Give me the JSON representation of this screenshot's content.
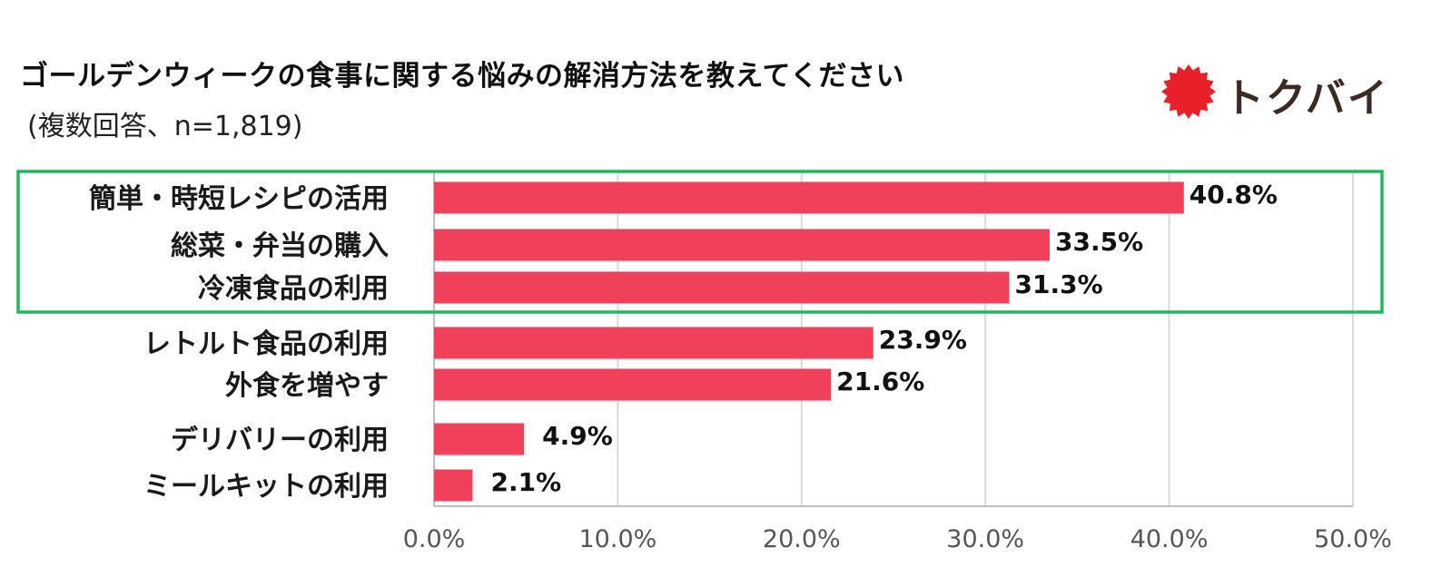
{
  "title": "ゴールデンウィークの食事に関する悩みの解消方法を教えてください",
  "subtitle": "(複数回答、n=1,819)",
  "logo": {
    "text": "トクバイ",
    "mark_color": "#e8202a"
  },
  "colors": {
    "bar": "#f1405a",
    "highlight_box": "#1fb85a",
    "grid": "#d9d9d9",
    "axis": "#bfbfbf"
  },
  "chart_data": {
    "type": "bar",
    "orientation": "horizontal",
    "categories": [
      "簡単・時短レシピの活用",
      "総菜・弁当の購入",
      "冷凍食品の利用",
      "レトルト食品の利用",
      "外食を増やす",
      "デリバリーの利用",
      "ミールキットの利用"
    ],
    "values": [
      40.8,
      33.5,
      31.3,
      23.9,
      21.6,
      4.9,
      2.1
    ],
    "value_labels": [
      "40.8%",
      "33.5%",
      "31.3%",
      "23.9%",
      "21.6%",
      "4.9%",
      "2.1%"
    ],
    "xlim": [
      0,
      50
    ],
    "ticks": [
      "0.0%",
      "10.0%",
      "20.0%",
      "30.0%",
      "40.0%",
      "50.0%"
    ],
    "grid": true,
    "highlighted_categories": [
      "簡単・時短レシピの活用",
      "総菜・弁当の購入",
      "冷凍食品の利用"
    ]
  }
}
